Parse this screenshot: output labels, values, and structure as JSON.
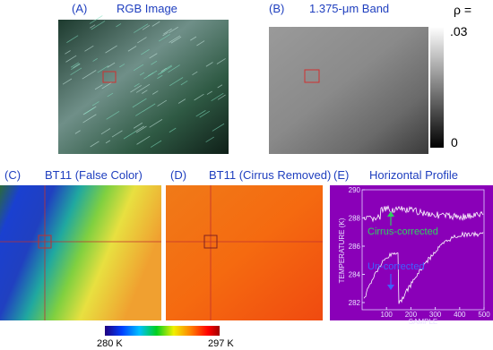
{
  "panels": [
    {
      "label": "(A)",
      "title": "RGB Image"
    },
    {
      "label": "(B)",
      "title": "1.375-μm Band"
    },
    {
      "label": "(C)",
      "title": "BT11 (False Color)"
    },
    {
      "label": "(D)",
      "title": "BT11 (Cirrus Removed)"
    },
    {
      "label": "(E)",
      "title": "Horizontal Profile"
    }
  ],
  "reflectance_bar": {
    "label": "ρ =",
    "max": ".03",
    "min": "0"
  },
  "temperature_bar": {
    "min": "280 K",
    "max": "297 K"
  },
  "profile": {
    "y_label": "TEMPERATURE (K)",
    "x_label": "SAMPLE",
    "yticks": [
      "282",
      "284",
      "286",
      "288",
      "290"
    ],
    "xticks": [
      "100",
      "200",
      "300",
      "400",
      "500"
    ],
    "corrected_label": "Cirrus-corrected",
    "uncorrected_label": "Un-corrected"
  }
}
